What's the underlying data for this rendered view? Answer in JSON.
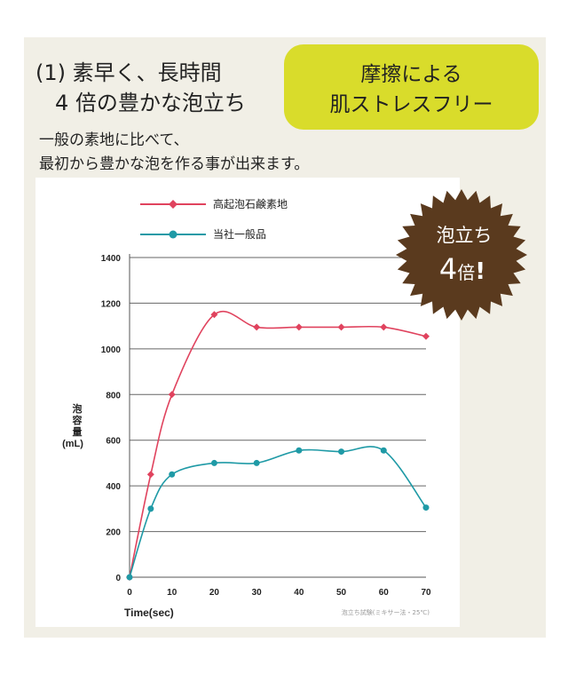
{
  "heading": {
    "line1": "(1) 素早く、長時間",
    "line2": "4 倍の豊かな泡立ち"
  },
  "badge": {
    "line1": "摩擦による",
    "line2": "肌ストレスフリー",
    "color": "#d9dc2b"
  },
  "intro": {
    "line1": "一般の素地に比べて、",
    "line2": "最初から豊かな泡を作る事が出来ます。"
  },
  "starburst": {
    "line1": "泡立ち",
    "line2_number": "4",
    "line2_text": "倍",
    "line2_mark": "!",
    "color": "#5a3a1e"
  },
  "chart_data": {
    "type": "line",
    "xlabel": "Time(sec)",
    "ylabel": [
      "泡",
      "容",
      "量",
      "(mL)"
    ],
    "x": [
      0,
      5,
      10,
      20,
      30,
      40,
      50,
      60,
      70
    ],
    "x_ticks": [
      0,
      10,
      20,
      30,
      40,
      50,
      60,
      70
    ],
    "y_ticks": [
      0,
      200,
      400,
      600,
      800,
      1000,
      1200,
      1400
    ],
    "xlim": [
      0,
      70
    ],
    "ylim": [
      0,
      1400
    ],
    "grid": "horizontal",
    "legend_position": "top",
    "note": "泡立ち試験(ミキサー法・25℃)",
    "series": [
      {
        "name": "高起泡石鹸素地",
        "color": "#e0435e",
        "marker": "diamond",
        "values": [
          0,
          450,
          800,
          1150,
          1095,
          1095,
          1095,
          1095,
          1055
        ]
      },
      {
        "name": "当社一般品",
        "color": "#1f9aa6",
        "marker": "circle",
        "values": [
          0,
          300,
          450,
          500,
          500,
          555,
          550,
          555,
          305
        ]
      }
    ]
  }
}
